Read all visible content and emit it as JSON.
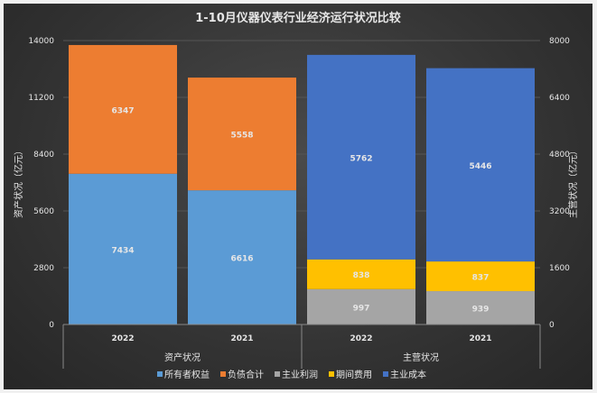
{
  "chart_data": {
    "type": "bar",
    "stacked": true,
    "title": "1-10月仪器仪表行业经济运行状况比较",
    "ylabel_left": "资产状况（亿元）",
    "ylabel_right": "主营状况（亿元）",
    "ylim_left": [
      0,
      14000
    ],
    "yticks_left": [
      "0",
      "2800",
      "5600",
      "8400",
      "11200",
      "14000"
    ],
    "ylim_right": [
      0,
      8000
    ],
    "yticks_right": [
      "0",
      "1600",
      "3200",
      "4800",
      "6400",
      "8000"
    ],
    "grid": true,
    "legend_position": "bottom",
    "groups": [
      {
        "label": "资产状况",
        "axis": "left",
        "categories": [
          "2022",
          "2021"
        ],
        "series": [
          {
            "name": "所有者权益",
            "color": "#5b9bd5",
            "values": [
              7434,
              6616
            ]
          },
          {
            "name": "负债合计",
            "color": "#ed7d31",
            "values": [
              6347,
              5558
            ]
          }
        ]
      },
      {
        "label": "主营状况",
        "axis": "right",
        "categories": [
          "2022",
          "2021"
        ],
        "series": [
          {
            "name": "主业利润",
            "color": "#a5a5a5",
            "values": [
              997,
              939
            ]
          },
          {
            "name": "期间费用",
            "color": "#ffc000",
            "values": [
              838,
              837
            ]
          },
          {
            "name": "主业成本",
            "color": "#4472c4",
            "values": [
              5762,
              5446
            ]
          }
        ]
      }
    ],
    "legend": [
      {
        "name": "所有者权益",
        "color": "#5b9bd5"
      },
      {
        "name": "负债合计",
        "color": "#ed7d31"
      },
      {
        "name": "主业利润",
        "color": "#a5a5a5"
      },
      {
        "name": "期间费用",
        "color": "#ffc000"
      },
      {
        "name": "主业成本",
        "color": "#4472c4"
      }
    ]
  }
}
